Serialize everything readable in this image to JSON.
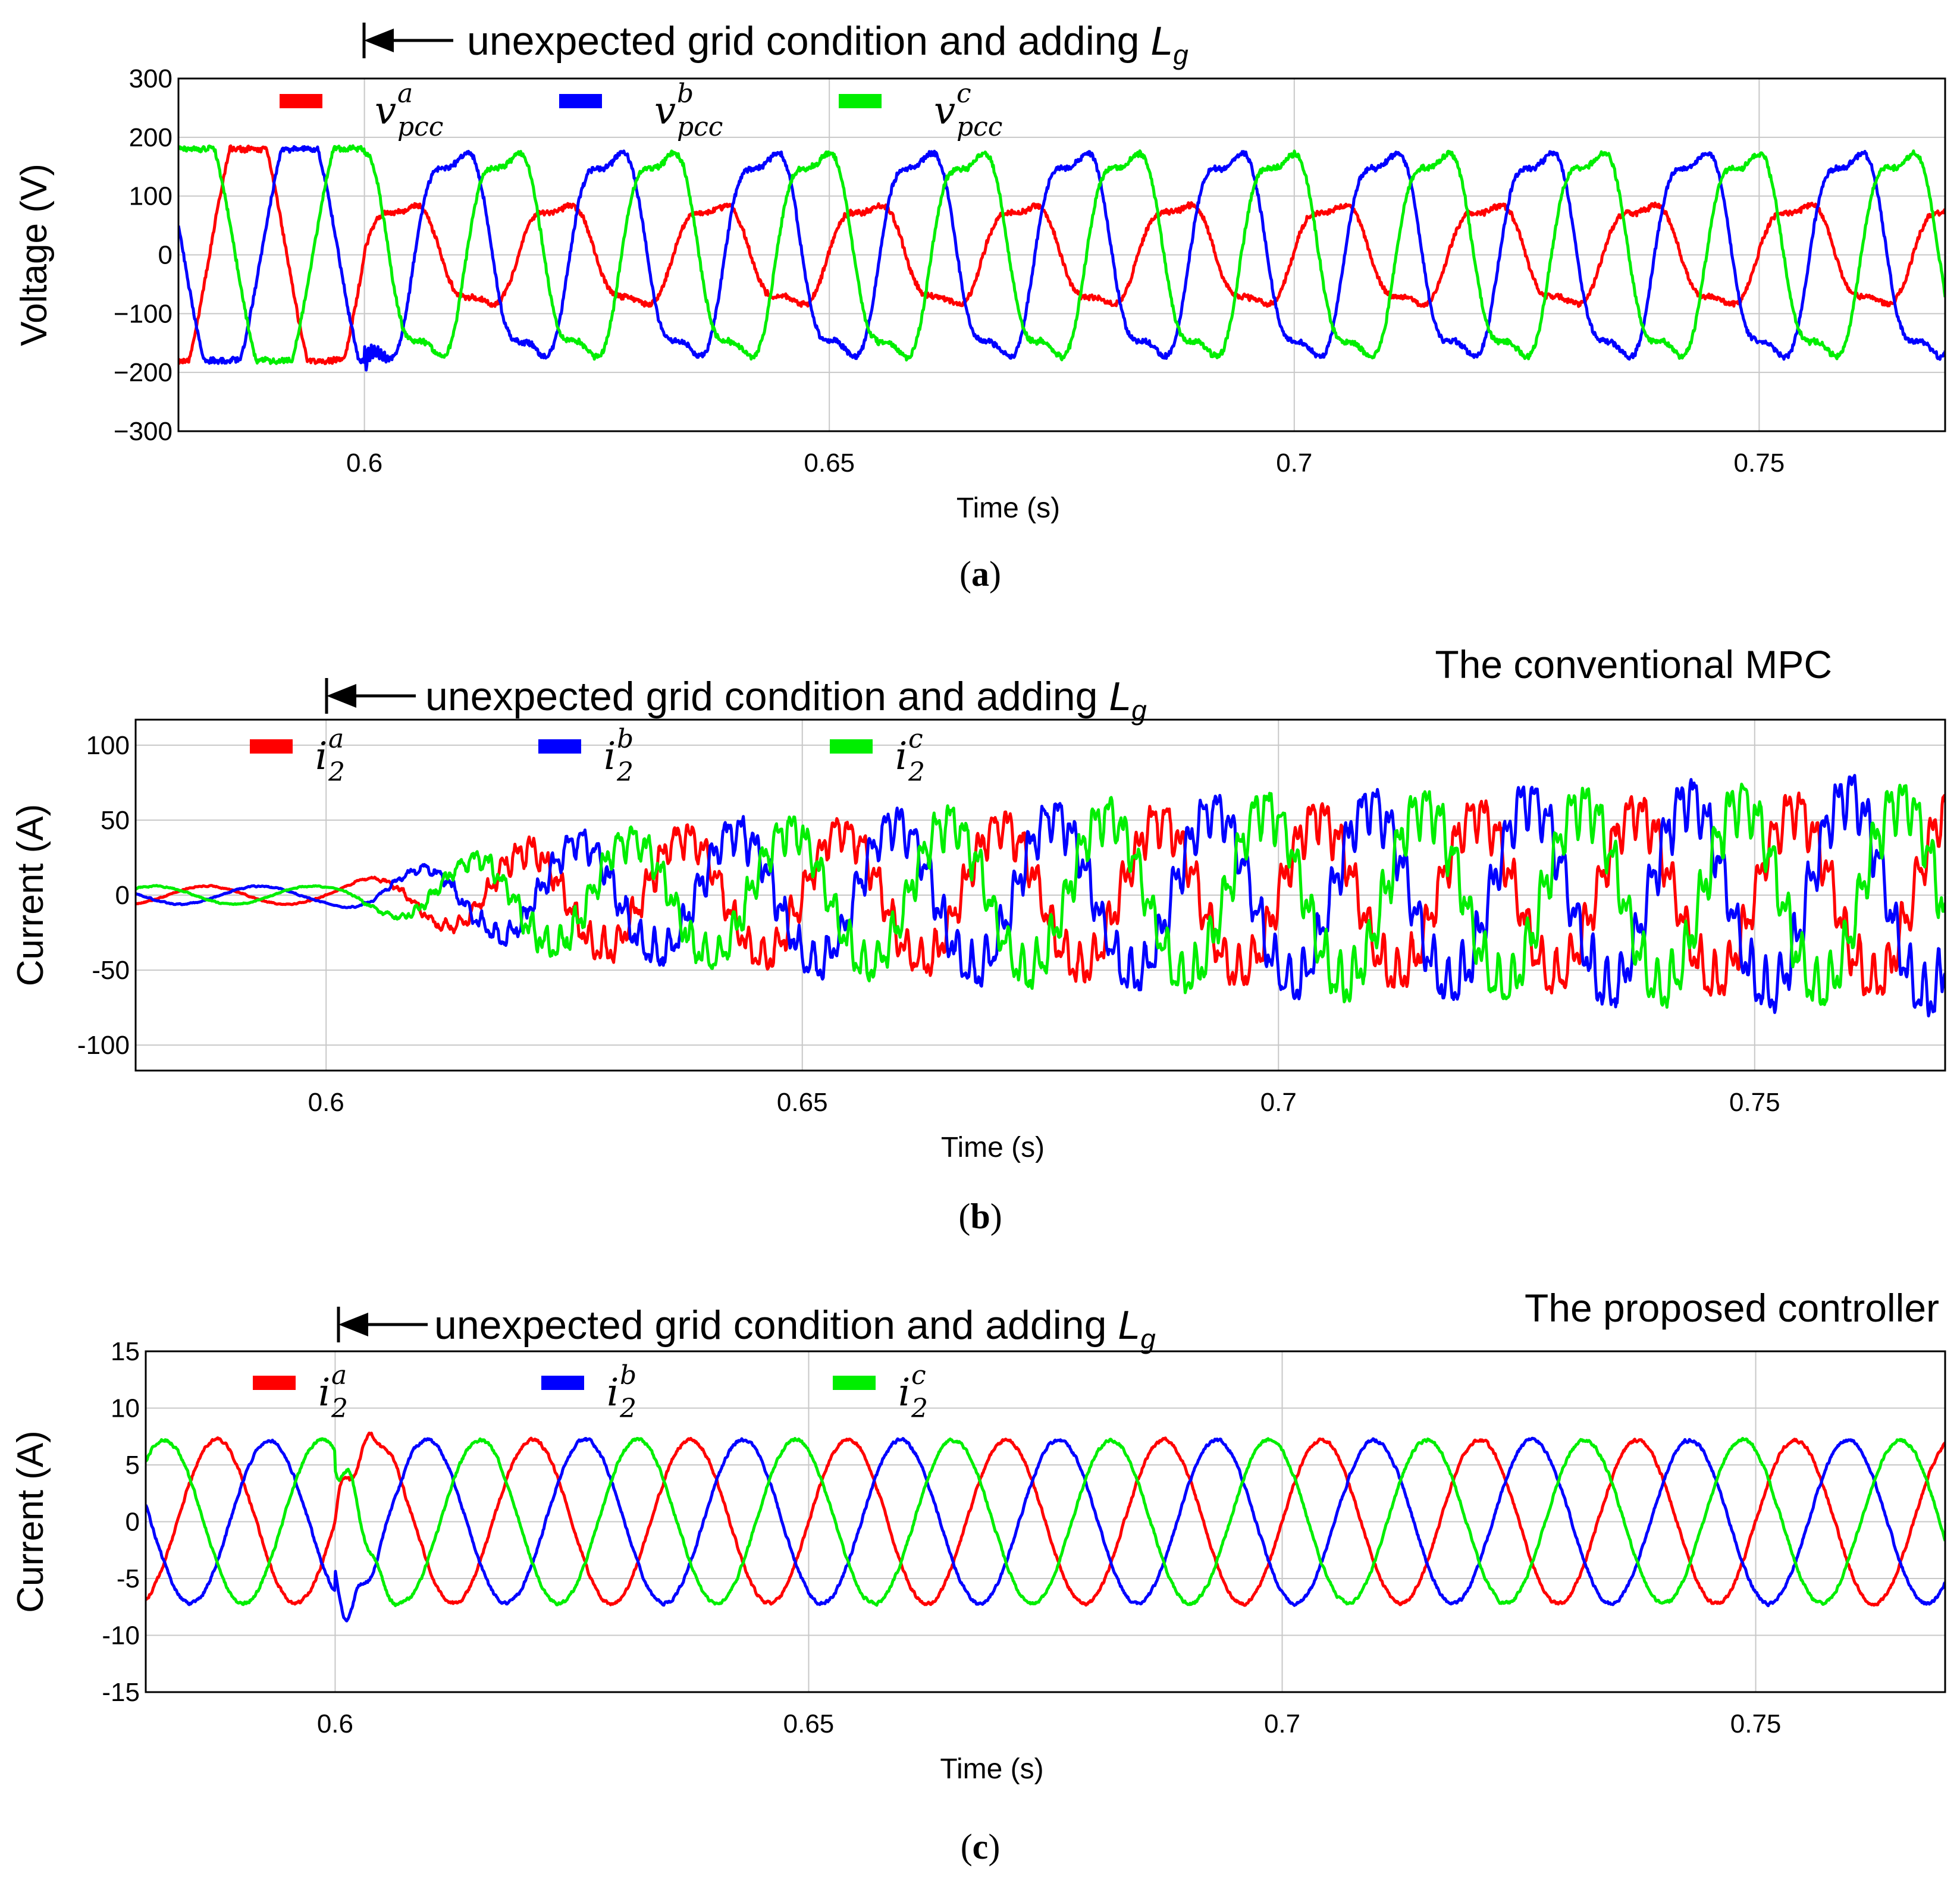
{
  "chart_data": [
    {
      "type": "line",
      "panel_label": "a",
      "title": "",
      "annotation": "unexpected grid condition and adding",
      "annotation_symbol": "L",
      "annotation_subscript": "g",
      "event_time": 0.6,
      "xlabel": "Time (s)",
      "ylabel": "Voltage (V)",
      "xlim": [
        0.58,
        0.77
      ],
      "ylim": [
        -300,
        300
      ],
      "xticks": [
        0.6,
        0.65,
        0.7,
        0.75
      ],
      "xtick_labels": [
        "0.6",
        "0.65",
        "0.7",
        "0.75"
      ],
      "yticks": [
        300,
        200,
        100,
        0,
        -100,
        -200,
        -300
      ],
      "ytick_labels": [
        "300",
        "200",
        "100",
        "0",
        "−100",
        "−200",
        "−300"
      ],
      "grid": true,
      "frequency_hz": 60,
      "series": [
        {
          "name": "v_pcc^a",
          "base": "v",
          "superscript": "a",
          "subscript": "pcc",
          "color": "#ff0000",
          "phase_deg": 0,
          "amplitude_before": 180,
          "amplitude_after": 90,
          "shape_before": "clipped",
          "noise": 8
        },
        {
          "name": "v_pcc^b",
          "base": "v",
          "superscript": "b",
          "subscript": "pcc",
          "color": "#0000ff",
          "phase_deg": -120,
          "amplitude_before": 180,
          "amplitude_after": 185,
          "shape_before": "clipped",
          "noise": 8
        },
        {
          "name": "v_pcc^c",
          "base": "v",
          "superscript": "c",
          "subscript": "pcc",
          "color": "#00ee00",
          "phase_deg": 120,
          "amplitude_before": 180,
          "amplitude_after": 185,
          "shape_before": "clipped",
          "noise": 8
        }
      ]
    },
    {
      "type": "line",
      "panel_label": "b",
      "title": "The conventional MPC",
      "annotation": "unexpected grid condition and adding",
      "annotation_symbol": "L",
      "annotation_subscript": "g",
      "event_time": 0.6,
      "xlabel": "Time (s)",
      "ylabel": "Current (A)",
      "xlim": [
        0.58,
        0.77
      ],
      "ylim": [
        -117,
        117
      ],
      "xticks": [
        0.6,
        0.65,
        0.7,
        0.75
      ],
      "xtick_labels": [
        "0.6",
        "0.65",
        "0.7",
        "0.75"
      ],
      "yticks": [
        100,
        50,
        0,
        -50,
        -100
      ],
      "ytick_labels": [
        "100",
        "50",
        "0",
        "-50",
        "-100"
      ],
      "grid": true,
      "frequency_hz": 60,
      "series": [
        {
          "name": "i_2^a",
          "base": "i",
          "superscript": "a",
          "subscript": "2",
          "color": "#ff0000",
          "phase_deg": 0,
          "amplitude_before": 6,
          "amplitude_growth": [
            [
              0.6,
              6
            ],
            [
              0.625,
              35
            ],
            [
              0.65,
              42
            ],
            [
              0.7,
              52
            ],
            [
              0.77,
              58
            ]
          ],
          "noise": 7
        },
        {
          "name": "i_2^b",
          "base": "i",
          "superscript": "b",
          "subscript": "2",
          "color": "#0000ff",
          "phase_deg": -120,
          "amplitude_before": 6,
          "amplitude_growth": [
            [
              0.6,
              6
            ],
            [
              0.625,
              35
            ],
            [
              0.65,
              45
            ],
            [
              0.7,
              58
            ],
            [
              0.77,
              68
            ]
          ],
          "noise": 7
        },
        {
          "name": "i_2^c",
          "base": "i",
          "superscript": "c",
          "subscript": "2",
          "color": "#00ee00",
          "phase_deg": 120,
          "amplitude_before": 6,
          "amplitude_growth": [
            [
              0.6,
              6
            ],
            [
              0.625,
              35
            ],
            [
              0.65,
              45
            ],
            [
              0.7,
              58
            ],
            [
              0.77,
              64
            ]
          ],
          "noise": 7
        }
      ]
    },
    {
      "type": "line",
      "panel_label": "c",
      "title": "The proposed controller",
      "annotation": "unexpected grid condition and adding",
      "annotation_symbol": "L",
      "annotation_subscript": "g",
      "event_time": 0.6,
      "xlabel": "Time (s)",
      "ylabel": "Current (A)",
      "xlim": [
        0.58,
        0.77
      ],
      "ylim": [
        -15,
        15
      ],
      "xticks": [
        0.6,
        0.65,
        0.7,
        0.75
      ],
      "xtick_labels": [
        "0.6",
        "0.65",
        "0.7",
        "0.75"
      ],
      "yticks": [
        15,
        10,
        5,
        0,
        -5,
        -10,
        -15
      ],
      "ytick_labels": [
        "15",
        "10",
        "5",
        "0",
        "-5",
        "-10",
        "-15"
      ],
      "grid": true,
      "frequency_hz": 60,
      "series": [
        {
          "name": "i_2^a",
          "base": "i",
          "superscript": "a",
          "subscript": "2",
          "color": "#ff0000",
          "phase_deg": 0,
          "amplitude": 7.2,
          "noise": 0.3
        },
        {
          "name": "i_2^b",
          "base": "i",
          "superscript": "b",
          "subscript": "2",
          "color": "#0000ff",
          "phase_deg": -120,
          "amplitude": 7.2,
          "noise": 0.3
        },
        {
          "name": "i_2^c",
          "base": "i",
          "superscript": "c",
          "subscript": "2",
          "color": "#00ee00",
          "phase_deg": 120,
          "amplitude": 7.2,
          "noise": 0.3
        }
      ]
    }
  ]
}
